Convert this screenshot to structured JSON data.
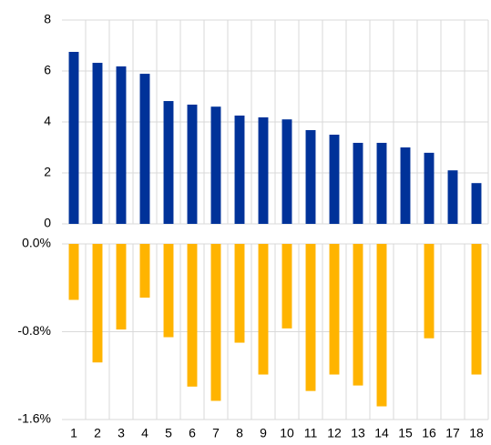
{
  "chart_data": [
    {
      "type": "bar",
      "color": "#003299",
      "grid": true,
      "values": [
        6.75,
        6.32,
        6.18,
        5.89,
        4.82,
        4.68,
        4.6,
        4.25,
        4.18,
        4.1,
        3.68,
        3.5,
        3.18,
        3.18,
        3.0,
        2.79,
        2.1,
        1.6
      ],
      "ylim": [
        0,
        8
      ],
      "yticks": [
        0,
        2,
        4,
        6,
        8
      ]
    },
    {
      "type": "bar",
      "color": "#ffb400",
      "grid": true,
      "categories": [
        "1",
        "2",
        "3",
        "4",
        "5",
        "6",
        "7",
        "8",
        "9",
        "10",
        "11",
        "12",
        "13",
        "14",
        "15",
        "16",
        "17",
        "18"
      ],
      "values": [
        -0.51,
        -1.08,
        -0.78,
        -0.49,
        -0.85,
        -1.3,
        -1.43,
        -0.9,
        -1.19,
        -0.77,
        -1.34,
        -1.19,
        -1.29,
        -1.48,
        null,
        -0.86,
        null,
        -1.19
      ],
      "ylim": [
        -1.6,
        0
      ],
      "yticks": [
        {
          "value": 0,
          "label": "0.0%"
        },
        {
          "value": -0.8,
          "label": "-0.8%"
        },
        {
          "value": -1.6,
          "label": "-1.6%"
        }
      ]
    }
  ]
}
